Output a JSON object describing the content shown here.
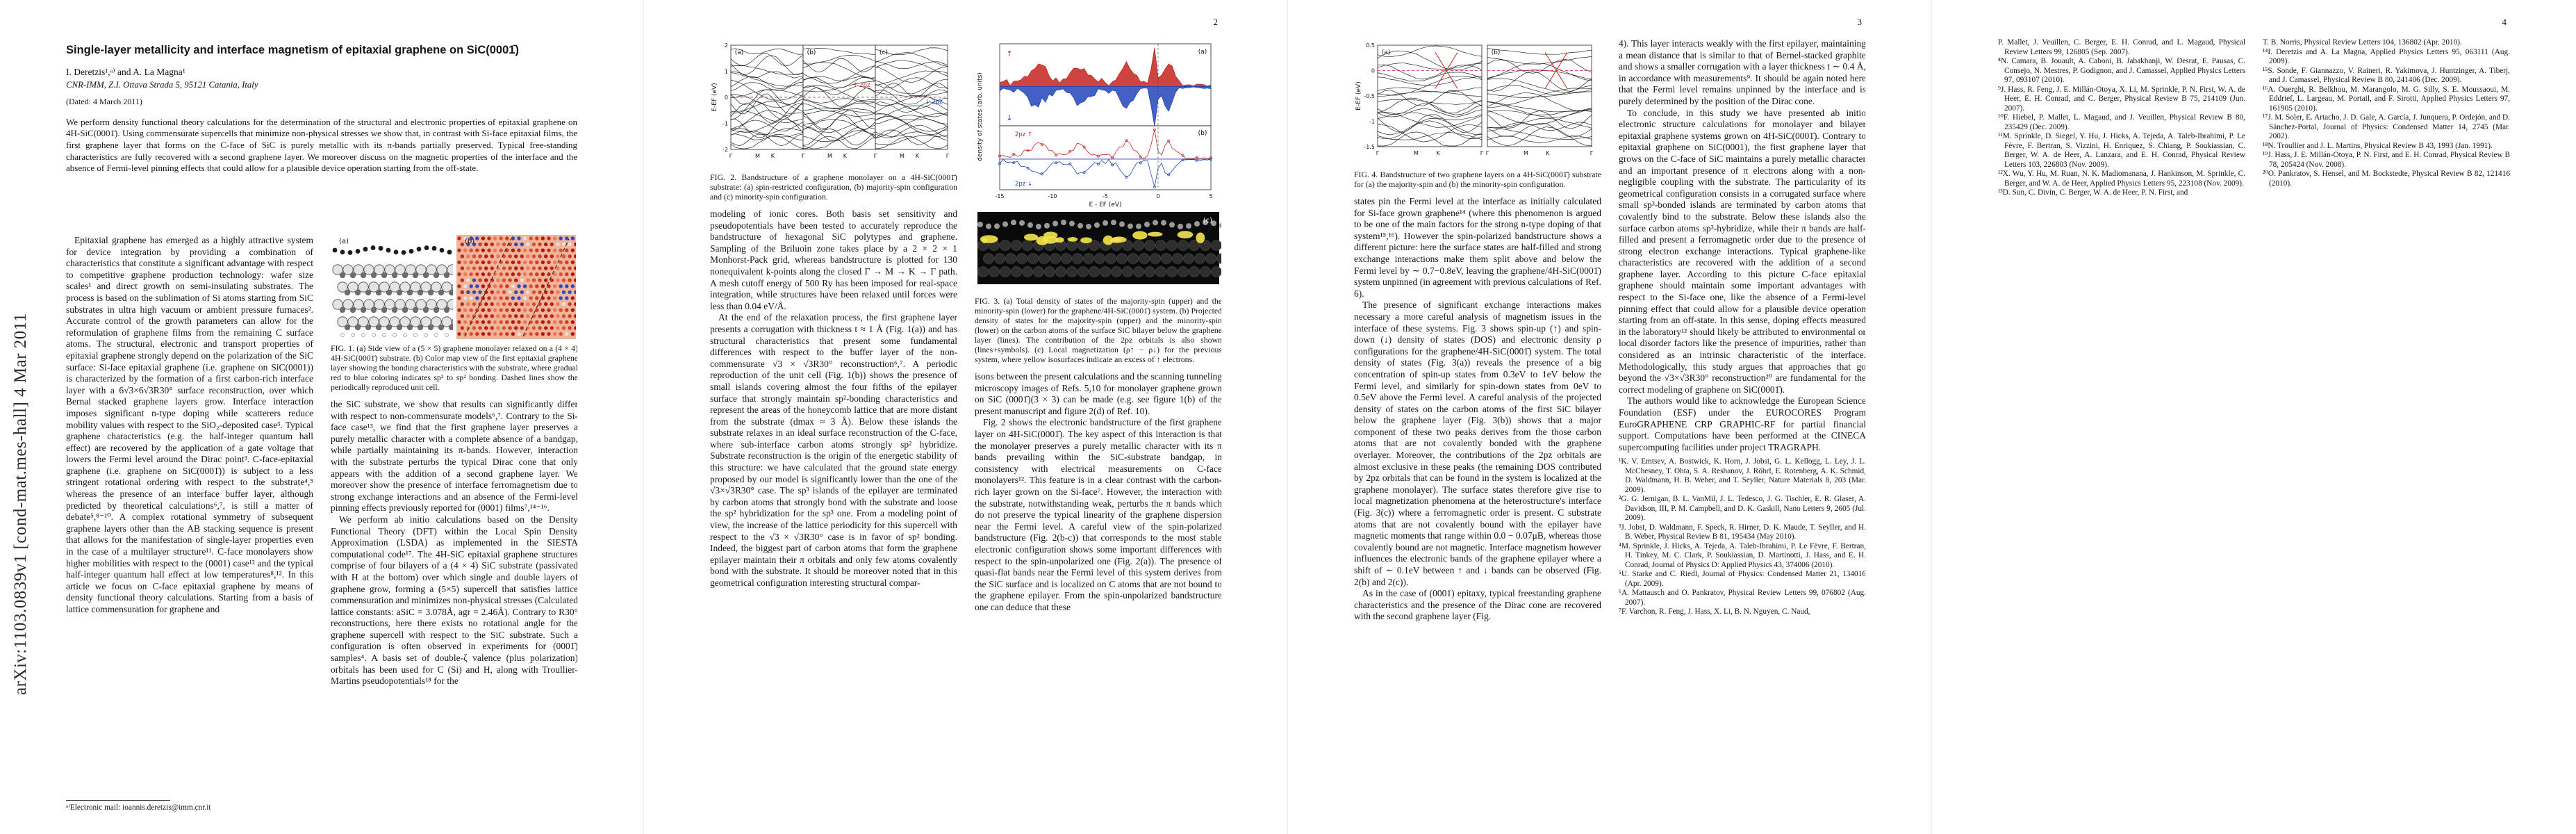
{
  "banner": "arXiv:1103.0839v1  [cond-mat.mes-hall]  4 Mar 2011",
  "colors": {
    "spin_up": "#c4251f",
    "spin_down": "#2244bb",
    "fermi_line": "#cc2222",
    "iso_yellow": "#f2e34d"
  },
  "front": {
    "title": "Single-layer metallicity and interface magnetism of epitaxial graphene on SiC(0001̄)",
    "authors": "I. Deretzis¹,ᵃ⁾ and A. La Magna¹",
    "affiliation": "CNR-IMM, Z.I. Ottava Strada 5, 95121 Catania, Italy",
    "dated": "(Dated: 4 March 2011)",
    "abstract": "We perform density functional theory calculations for the determination of the structural and electronic properties of epitaxial graphene on 4H-SiC(0001̄). Using commensurate supercells that minimize non-physical stresses we show that, in contrast with Si-face epitaxial films, the first graphene layer that forms on the C-face of SiC is purely metallic with its π-bands partially preserved. Typical free-standing characteristics are fully recovered with a second graphene layer. We moreover discuss on the magnetic properties of the interface and the absence of Fermi-level pinning effects that could allow for a plausible device operation starting from the off-state.",
    "footnote": "ᵃ⁾Electronic mail: ioannis.deretzis@imm.cnr.it"
  },
  "page1": {
    "col1_paras": [
      "Epitaxial graphene has emerged as a highly attractive system for device integration by providing a combination of characteristics that constitute a significant advantage with respect to competitive graphene production technology: wafer size scales¹ and direct growth on semi-insulating substrates. The process is based on the sublimation of Si atoms starting from SiC substrates in ultra high vacuum or ambient pressure furnaces². Accurate control of the growth parameters can allow for the reformulation of graphene films from the remaining C surface atoms. The structural, electronic and transport properties of epitaxial graphene strongly depend on the polarization of the SiC surface: Si-face epitaxial graphene (i.e. graphene on SiC(0001)) is characterized by the formation of a first carbon-rich interface layer with a 6√3×6√3R30° surface reconstruction, over which Bernal stacked graphene layers grow. Interface interaction imposes significant n-type doping while scatterers reduce mobility values with respect to the SiO₂-deposited case³. Typical graphene characteristics (e.g. the half-integer quantum hall effect) are recovered by the application of a gate voltage that lowers the Fermi level around the Dirac point³. C-face-epitaxial graphene (i.e. graphene on SiC(0001̄)) is subject to a less stringent rotational ordering with respect to the substrate⁴,⁵ whereas the presence of an interface buffer layer, although predicted by theoretical calculations⁶,⁷, is still a matter of debate⁵,⁸⁻¹⁰. A complex rotational symmetry of subsequent graphene layers other than the AB stacking sequence is present that allows for the manifestation of single-layer properties even in the case of a multilayer structure¹¹. C-face monolayers show higher mobilities with respect to the (0001) case¹² and the typical half-integer quantum hall effect at low temperatures⁸,¹². In this article we focus on C-face epitaxial graphene by means of density functional theory calculations. Starting from a basis of lattice commensuration for graphene and"
    ],
    "col2_paras": [
      "the SiC substrate, we show that results can significantly differ with respect to non-commensurate models⁶,⁷. Contrary to the Si-face case¹³, we find that the first graphene layer preserves a purely metallic character with a complete absence of a bandgap, while partially maintaining its π-bands. However, interaction with the substrate perturbs the typical Dirac cone that only appears with the addition of a second graphene layer. We moreover show the presence of interface ferromagnetism due to strong exchange interactions and an absence of the Fermi-level pinning effects previously reported for (0001) films⁷,¹⁴⁻¹⁶.",
      "We perform ab initio calculations based on the Density Functional Theory (DFT) within the Local Spin Density Approximation (LSDA) as implemented in the SIESTA computational code¹⁷. The 4H-SiC epitaxial graphene structures comprise of four bilayers of a (4 × 4) SiC substrate (passivated with H at the bottom) over which single and double layers of graphene grow, forming a (5×5) supercell that satisfies lattice commensuration and minimizes non-physical stresses (Calculated lattice constants: aSiC = 3.078Å, agr = 2.46Å). Contrary to R30° reconstructions, here there exists no rotational angle for the graphene supercell with respect to the SiC substrate. Such a configuration is often observed in experiments for (0001̄) samples⁴. A basis set of double-ζ valence (plus polarization) orbitals has been used for C (Si) and H, along with Troullier-Martins pseudopotentials¹⁸ for the"
    ],
    "fig1": {
      "panel_a": "(a)",
      "panel_b": "(b)",
      "caption": "FIG. 1.  (a) Side view of a (5 × 5) graphene monolayer relaxed on a (4 × 4) 4H-SiC(0001̄) substrate. (b) Color map view of the first epitaxial graphene layer showing the bonding characteristics with the substrate, where gradual red to blue coloring indicates sp³ to sp² bonding. Dashed lines show the periodically reproduced unit cell."
    }
  },
  "page2": {
    "number": "2",
    "fig2": {
      "panel_a": "(a)",
      "panel_b": "(b)",
      "panel_c": "(c)",
      "ylabel": "E-EF (eV)",
      "yticks": [
        "2",
        "1",
        "0",
        "-1",
        "-2"
      ],
      "xticks": [
        "Γ",
        "M",
        "K",
        "Γ"
      ],
      "spin_up": "↑",
      "spin_down": "↓",
      "legend": "2pz",
      "caption": "FIG. 2.  Bandstructure of a graphene monolayer on a 4H-SiC(0001̄) substrate: (a) spin-restricted configuration, (b) majority-spin configuration and (c) minority-spin configuration."
    },
    "fig3": {
      "panel_a": "(a)",
      "panel_b": "(b)",
      "panel_c": "(c)",
      "ylabel": "density of states (arb. units)",
      "xlabel": "E - EF (eV)",
      "xticks": [
        "-15",
        "-10",
        "-5",
        "0",
        "5"
      ],
      "spin_up": "↑",
      "spin_down": "↓",
      "legend": "2pz",
      "caption": "FIG. 3.  (a) Total density of states of the majority-spin (upper) and the minority-spin (lower) for the graphene/4H-SiC(0001̄) system. (b) Projected density of states for the majority-spin (upper) and the minority-spin (lower) on the carbon atoms of the surface SiC bilayer below the graphene layer (lines). The contribution of the 2pz orbitals is also shown (lines+symbols). (c) Local magnetization (ρ↑ − ρ↓) for the previous system, where yellow isosurfaces indicate an excess of ↑ electrons."
    },
    "col1_paras": [
      "modeling of ionic cores. Both basis set sensitivity and pseudopotentials have been tested to accurately reproduce the bandstructure of hexagonal SiC polytypes and graphene. Sampling of the Briluoin zone takes place by a 2 × 2 × 1 Monhorst-Pack grid, whereas bandstructure is plotted for 130 nonequivalent k-points along the closed Γ → M → K → Γ path. A mesh cutoff energy of 500 Ry has been imposed for real-space integration, while structures have been relaxed until forces were less than 0.04 eV/Å.",
      "At the end of the relaxation process, the first graphene layer presents a corrugation with thickness t ≈ 1 Å (Fig. 1(a)) and has structural characteristics that present some fundamental differences with respect to the buffer layer of the non-commensurate √3 × √3R30° reconstruction⁶,⁷. A periodic reproduction of the unit cell (Fig. 1(b)) shows the presence of small islands covering almost the four fifths of the epilayer surface that strongly maintain sp²-bonding characteristics and represent the areas of the honeycomb lattice that are more distant from the substrate (dmax ≈ 3 Å). Below these islands the substrate relaxes in an ideal surface reconstruction of the C-face, where sub-interface carbon atoms strongly sp² hybridize. Substrate reconstruction is the origin of the energetic stability of this structure: we have calculated that the ground state energy proposed by our model is significantly lower than the one of the √3×√3R30° case. The sp³ islands of the epilayer are terminated by carbon atoms that strongly bond with the substrate and loose the sp² hybridization for the sp³ one. From a modeling point of view, the increase of the lattice periodicity for this supercell with respect to the √3 × √3R30° case is in favor of sp² bonding. Indeed, the biggest part of carbon atoms that form the graphene epilayer maintain their π orbitals and only few atoms covalently bond with the substrate. It should be moreover noted that in this geometrical configuration interesting structural compar-"
    ],
    "col2_paras": [
      "isons between the present calculations and the scanning tunneling microscopy images of Refs. 5,10 for monolayer graphene grown on SiC (0001̄)(3 × 3) can be made (e.g. see figure 1(b) of the present manuscript and figure 2(d) of Ref. 10).",
      "Fig. 2 shows the electronic bandstructure of the first graphene layer on 4H-SiC(0001̄). The key aspect of this interaction is that the monolayer preserves a purely metallic character with its π bands prevailing within the SiC-substrate bandgap, in consistency with electrical measurements on C-face monolayers¹². This feature is in a clear contrast with the carbon-rich layer grown on the Si-face⁷. However, the interaction with the substrate, notwithstanding weak, perturbs the π bands which do not preserve the typical linearity of the graphene dispersion near the Fermi level. A careful view of the spin-polarized bandstructure (Fig. 2(b-c)) that corresponds to the most stable electronic configuration shows some important differences with respect to the spin-unpolarized one (Fig. 2(a)). The presence of quasi-flat bands near the Fermi level of this system derives from the SiC surface and is localized on C atoms that are not bound to the graphene epilayer. From the spin-unpolarized bandstructure one can deduce that these"
    ]
  },
  "page3": {
    "number": "3",
    "fig4": {
      "panel_a": "(a)",
      "panel_b": "(b)",
      "ylabel": "E-EF (eV)",
      "yticks": [
        "0.5",
        "0",
        "-0.5",
        "-1",
        "-1.5"
      ],
      "xticks": [
        "Γ",
        "M",
        "K",
        "Γ"
      ],
      "caption": "FIG. 4.  Bandstructure of two graphene layers on a 4H-SiC(0001̄) substrate for (a) the majority-spin and (b) the minority-spin configuration."
    },
    "col1_paras": [
      "states pin the Fermi level at the interface as initially calculated for Si-face grown graphene¹⁴ (where this phenomenon is argued to be one of the main factors for the strong n-type doping of that system¹⁵,¹⁶). However the spin-polarized bandstructure shows a different picture: here the surface states are half-filled and strong exchange interactions make them split above and below the Fermi level by ∼ 0.7−0.8eV, leaving the graphene/4H-SiC(0001̄) system unpinned (in agreement with previous calculations of Ref. 6).",
      "The presence of significant exchange interactions makes necessary a more careful analysis of magnetism issues in the interface of these systems. Fig. 3 shows spin-up (↑) and spin-down (↓) density of states (DOS) and electronic density ρ configurations for the graphene/4H-SiC(0001̄) system. The total density of states (Fig. 3(a)) reveals the presence of a big concentration of spin-up states from 0.3eV to 1eV below the Fermi level, and similarly for spin-down states from 0eV to 0.5eV above the Fermi level. A careful analysis of the projected density of states on the carbon atoms of the first SiC bilayer below the graphene layer (Fig. 3(b)) shows that a major component of these two peaks derives from the those carbon atoms that are not covalently bonded with the graphene overlayer. Moreover, the contributions of the 2pz orbitals are almost exclusive in these peaks (the remaining DOS contributed by 2pz orbitals that can be found in the system is localized at the graphene monolayer). The surface states therefore give rise to local magnetization phenomena at the heterostructure's interface (Fig. 3(c)) where a ferromagnetic order is present. C substrate atoms that are not covalently bound with the epilayer have magnetic moments that range within 0.0 − 0.07μB, whereas those covalently bound are not magnetic. Interface magnetism however influences the electronic bands of the graphene epilayer where a shift of ∼ 0.1eV between ↑ and ↓ bands can be observed (Fig. 2(b) and 2(c)).",
      "As in the case of (0001) epitaxy, typical freestanding graphene characteristics and the presence of the Dirac cone are recovered with the second graphene layer (Fig."
    ],
    "col2_paras": [
      "4). This layer interacts weakly with the first epilayer, maintaining a mean distance that is similar to that of Bernel-stacked graphite and shows a smaller corrugation with a layer thickness t ∼ 0.4 Å, in accordance with measurements⁹. It should be again noted here that the Fermi level remains unpinned by the interface and is purely determined by the position of the Dirac cone.",
      "To conclude, in this study we have presented ab initio electronic structure calculations for monolayer and bilayer epitaxial graphene systems grown on 4H-SiC(0001̄). Contrary to epitaxial graphene on SiC(0001), the first graphene layer that grows on the C-face of SiC maintains a purely metallic character and an important presence of π electrons along with a non-negligible coupling with the substrate. The particularity of its geometrical configuration consists in a corrugated surface where small sp³-bonded islands are terminated by carbon atoms that covalently bind to the substrate. Below these islands also the surface carbon atoms sp³-hybridize, while their π bands are half-filled and present a ferromagnetic order due to the presence of strong electron exchange interactions. Typical graphene-like characteristics are recovered with the addition of a second graphene layer. According to this picture C-face epitaxial graphene should maintain some important advantages with respect to the Si-face one, like the absence of a Fermi-level pinning effect that could allow for a plausible device operation starting from an off-state. In this sense, doping effects measured in the laboratory¹² should likely be attributed to environmental or local disorder factors like the presence of impurities, rather than considered as an intrinsic characteristic of the interface. Methodologically, this study argues that approaches that go beyond the √3×√3R30° reconstruction²⁰ are fundamental for the correct modeling of graphene on SiC(0001̄).",
      "The authors would like to acknowledge the European Science Foundation (ESF) under the EUROCORES Program EuroGRAPHENE CRP GRAPHIC-RF for partial financial support. Computations have been performed at the CINECA supercomputing facilities under project TRAGRAPH."
    ],
    "refs": [
      "¹K. V. Emtsev, A. Bostwick, K. Horn, J. Jobst, G. L. Kellogg, L. Ley, J. L. McChesney, T. Ohta, S. A. Reshanov, J. Röhrl, E. Rotenberg, A. K. Schmid, D. Waldmann, H. B. Weber, and T. Seyller, Nature Materials 8, 203 (Mar. 2009).",
      "²G. G. Jernigan, B. L. VanMil, J. L. Tedesco, J. G. Tischler, E. R. Glaser, A. Davidson, III, P. M. Campbell, and D. K. Gaskill, Nano Letters 9, 2605 (Jul. 2009).",
      "³J. Jobst, D. Waldmann, F. Speck, R. Hirner, D. K. Maude, T. Seyller, and H. B. Weber, Physical Review B 81, 195434 (May 2010).",
      "⁴M. Sprinkle, J. Hicks, A. Tejeda, A. Taleb-Ibrahimi, P. Le Fèvre, F. Bertran, H. Tinkey, M. C. Clark, P. Soukiassian, D. Martinotti, J. Hass, and E. H. Conrad, Journal of Physics D: Applied Physics 43, 374006 (2010).",
      "⁵U. Starke and C. Riedl, Journal of Physics: Condensed Matter 21, 134016 (Apr. 2009).",
      "⁶A. Mattausch and O. Pankratov, Physical Review Letters 99, 076802 (Aug. 2007).",
      "⁷F. Varchon, R. Feng, J. Hass, X. Li, B. N. Nguyen, C. Naud,"
    ]
  },
  "page4": {
    "number": "4",
    "refs_col1": [
      "P. Mallet, J. Veuillen, C. Berger, E. H. Conrad, and L. Magaud, Physical Review Letters 99, 126805 (Sep. 2007).",
      "⁸N. Camara, B. Jouault, A. Caboni, B. Jabakhanji, W. Desrat, E. Pausas, C. Consejo, N. Mestres, P. Godignon, and J. Camassel, Applied Physics Letters 97, 093107 (2010).",
      "⁹J. Hass, R. Feng, J. E. Millán-Otoya, X. Li, M. Sprinkle, P. N. First, W. A. de Heer, E. H. Conrad, and C. Berger, Physical Review B 75, 214109 (Jun. 2007).",
      "¹⁰F. Hiebel, P. Mallet, L. Magaud, and J. Veuillen, Physical Review B 80, 235429 (Dec. 2009).",
      "¹¹M. Sprinkle, D. Siegel, Y. Hu, J. Hicks, A. Tejeda, A. Taleb-Ibrahimi, P. Le Fèvre, F. Bertran, S. Vizzini, H. Enriquez, S. Chiang, P. Soukiassian, C. Berger, W. A. de Heer, A. Lanzara, and E. H. Conrad, Physical Review Letters 103, 226803 (Nov. 2009).",
      "¹²X. Wu, Y. Hu, M. Ruan, N. K. Madiomanana, J. Hankinson, M. Sprinkle, C. Berger, and W. A. de Heer, Applied Physics Letters 95, 223108 (Nov. 2009).",
      "¹³D. Sun, C. Divin, C. Berger, W. A. de Heer, P. N. First, and"
    ],
    "refs_col2": [
      "T. B. Norris, Physical Review Letters 104, 136802 (Apr. 2010).",
      "¹⁴I. Deretzis and A. La Magna, Applied Physics Letters 95, 063111 (Aug. 2009).",
      "¹⁵S. Sonde, F. Giannazzo, V. Raineri, R. Yakimova, J. Huntzinger, A. Tiberj, and J. Camassel, Physical Review B 80, 241406 (Dec. 2009).",
      "¹⁶A. Ouerghi, R. Belkhou, M. Marangolo, M. G. Silly, S. E. Moussaoui, M. Eddrief, L. Largeau, M. Portail, and F. Sirotti, Applied Physics Letters 97, 161905 (2010).",
      "¹⁷J. M. Soler, E. Artacho, J. D. Gale, A. García, J. Junquera, P. Ordejón, and D. Sánchez-Portal, Journal of Physics: Condensed Matter 14, 2745 (Mar. 2002).",
      "¹⁸N. Troullier and J. L. Martins, Physical Review B 43, 1993 (Jan. 1991).",
      "¹⁹J. Hass, J. E. Millán-Otoya, P. N. First, and E. H. Conrad, Physical Review B 78, 205424 (Nov. 2008).",
      "²⁰O. Pankratov, S. Hensel, and M. Bockstedte, Physical Review B 82, 121416 (2010)."
    ]
  }
}
